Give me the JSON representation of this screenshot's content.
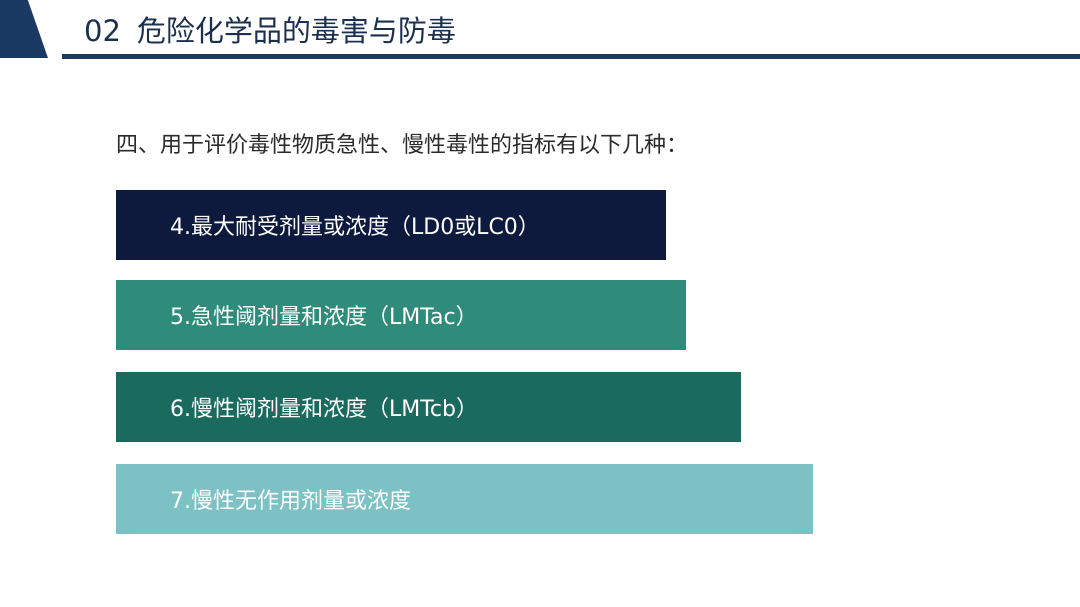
{
  "header": {
    "section_number": "02",
    "title": "危险化学品的毒害与防毒"
  },
  "subtitle": "四、用于评价毒性物质急性、慢性毒性的指标有以下几种：",
  "items": [
    {
      "label": "4.最大耐受剂量或浓度（LD0或LC0）"
    },
    {
      "label": "5.急性阈剂量和浓度（LMTac）"
    },
    {
      "label": "6.慢性阈剂量和浓度（LMTcb）"
    },
    {
      "label": "7.慢性无作用剂量或浓度"
    }
  ],
  "colors": {
    "header_blue": "#1b3a63",
    "item_4": "#0d1a3e",
    "item_5": "#2f8b7a",
    "item_6": "#1a6b5e",
    "item_7": "#7cc1c4"
  }
}
